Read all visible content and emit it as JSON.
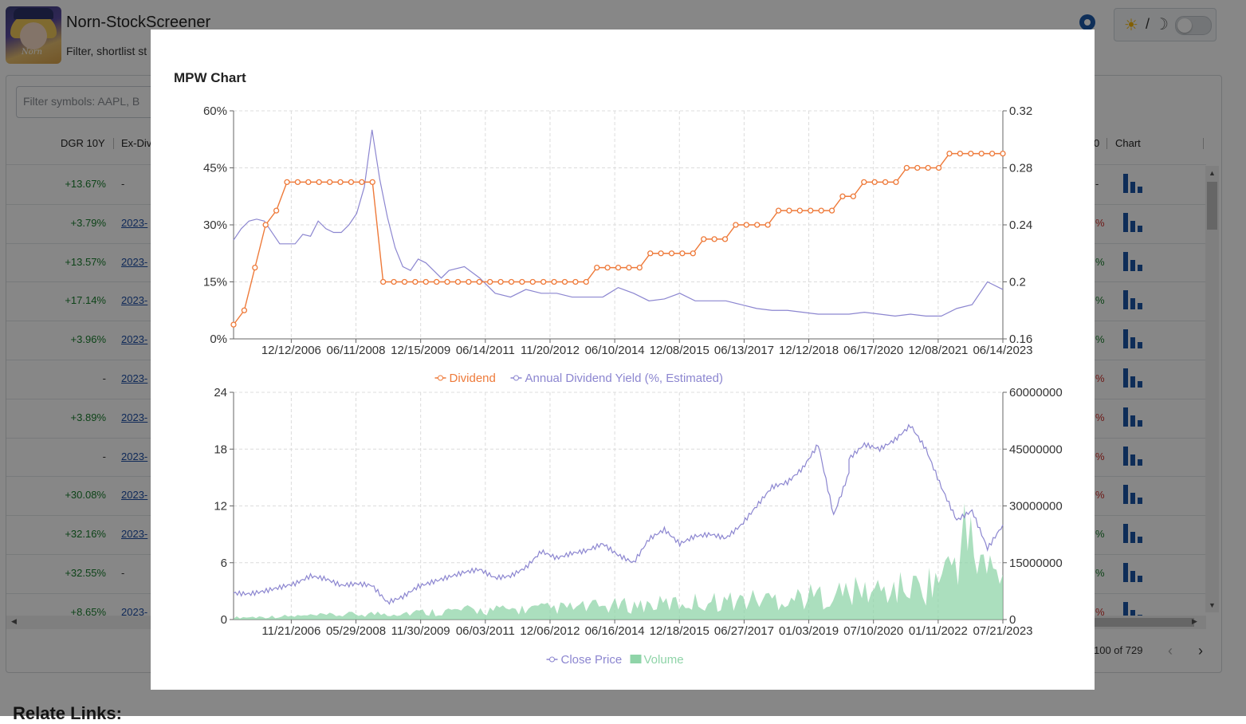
{
  "app": {
    "title": "Norn-StockScreener",
    "subtitle": "Filter, shortlist st",
    "avatar_text": "Norn"
  },
  "theme_toggle": {
    "sun_icon": "☀",
    "slash": "/",
    "moon_icon": "☽"
  },
  "filter": {
    "placeholder": "Filter symbols: AAPL, B"
  },
  "table": {
    "headers": [
      "DGR 10Y",
      "Ex-Div",
      "0",
      "Chart"
    ],
    "rows": [
      {
        "dgr": "+13.67%",
        "exdiv": "-",
        "right": "-",
        "right_class": "dash"
      },
      {
        "dgr": "+3.79%",
        "exdiv": "2023-",
        "right": "%",
        "right_class": "red"
      },
      {
        "dgr": "+13.57%",
        "exdiv": "2023-",
        "right": "%",
        "right_class": "green"
      },
      {
        "dgr": "+17.14%",
        "exdiv": "2023-",
        "right": "%",
        "right_class": "green"
      },
      {
        "dgr": "+3.96%",
        "exdiv": "2023-",
        "right": "%",
        "right_class": "green"
      },
      {
        "dgr": "-",
        "exdiv": "2023-",
        "right": "%",
        "right_class": "red"
      },
      {
        "dgr": "+3.89%",
        "exdiv": "2023-",
        "right": "%",
        "right_class": "red"
      },
      {
        "dgr": "-",
        "exdiv": "2023-",
        "right": "%",
        "right_class": "red"
      },
      {
        "dgr": "+30.08%",
        "exdiv": "2023-",
        "right": "%",
        "right_class": "red"
      },
      {
        "dgr": "+32.16%",
        "exdiv": "2023-",
        "right": "%",
        "right_class": "green"
      },
      {
        "dgr": "+32.55%",
        "exdiv": "-",
        "right": "%",
        "right_class": "green"
      },
      {
        "dgr": "+8.65%",
        "exdiv": "2023-",
        "right": "%",
        "right_class": "red"
      }
    ]
  },
  "pager": {
    "text": "100 of 729",
    "prev": "‹",
    "next": "›"
  },
  "related": {
    "label": "Relate Links:"
  },
  "modal": {
    "title": "MPW Chart",
    "colors": {
      "dividend": "#ee7a3a",
      "yield": "#8c86d0",
      "close": "#8c86d0",
      "volume": "#8fd4a8"
    }
  },
  "chart_data": [
    {
      "type": "line",
      "title": "",
      "x_ticks": [
        "12/12/2006",
        "06/11/2008",
        "12/15/2009",
        "06/14/2011",
        "11/20/2012",
        "06/10/2014",
        "12/08/2015",
        "06/13/2017",
        "12/12/2018",
        "06/17/2020",
        "12/08/2021",
        "06/14/2023"
      ],
      "y_left_ticks": [
        "0%",
        "15%",
        "30%",
        "45%",
        "60%"
      ],
      "y_right_ticks": [
        "0.16",
        "0.2",
        "0.24",
        "0.28",
        "0.32"
      ],
      "ylim_left": [
        0,
        60
      ],
      "ylim_right": [
        0.16,
        0.32
      ],
      "grid": true,
      "legend_position": "bottom-center",
      "series": [
        {
          "name": "Dividend",
          "axis": "right",
          "values": [
            0.17,
            0.18,
            0.21,
            0.24,
            0.25,
            0.27,
            0.27,
            0.27,
            0.27,
            0.27,
            0.27,
            0.27,
            0.27,
            0.27,
            0.2,
            0.2,
            0.2,
            0.2,
            0.2,
            0.2,
            0.2,
            0.2,
            0.2,
            0.2,
            0.2,
            0.2,
            0.2,
            0.2,
            0.2,
            0.2,
            0.2,
            0.2,
            0.2,
            0.2,
            0.21,
            0.21,
            0.21,
            0.21,
            0.21,
            0.22,
            0.22,
            0.22,
            0.22,
            0.22,
            0.23,
            0.23,
            0.23,
            0.24,
            0.24,
            0.24,
            0.24,
            0.25,
            0.25,
            0.25,
            0.25,
            0.25,
            0.25,
            0.26,
            0.26,
            0.27,
            0.27,
            0.27,
            0.27,
            0.28,
            0.28,
            0.28,
            0.28,
            0.29,
            0.29,
            0.29,
            0.29,
            0.29,
            0.29
          ]
        },
        {
          "name": "Annual Dividend Yield (%, Estimated)",
          "axis": "left",
          "x_frac": [
            0,
            0.01,
            0.02,
            0.03,
            0.04,
            0.05,
            0.06,
            0.07,
            0.08,
            0.09,
            0.1,
            0.11,
            0.12,
            0.13,
            0.14,
            0.15,
            0.16,
            0.17,
            0.18,
            0.19,
            0.2,
            0.21,
            0.22,
            0.23,
            0.24,
            0.25,
            0.26,
            0.27,
            0.28,
            0.3,
            0.32,
            0.34,
            0.36,
            0.38,
            0.4,
            0.42,
            0.44,
            0.46,
            0.48,
            0.5,
            0.52,
            0.54,
            0.56,
            0.58,
            0.6,
            0.62,
            0.64,
            0.66,
            0.68,
            0.7,
            0.72,
            0.74,
            0.76,
            0.78,
            0.8,
            0.82,
            0.84,
            0.86,
            0.88,
            0.9,
            0.92,
            0.94,
            0.96,
            0.98,
            1.0
          ],
          "values": [
            26,
            29,
            31,
            31.5,
            31,
            28,
            25,
            25,
            25,
            27.5,
            27,
            31,
            29,
            28,
            28,
            30,
            33,
            40,
            55,
            42,
            32,
            24,
            19,
            18,
            21,
            20,
            18,
            16,
            18,
            19,
            16,
            12,
            11,
            13,
            12,
            12,
            11,
            11,
            11,
            13.5,
            12,
            10,
            10.5,
            12,
            10,
            10,
            10,
            9,
            8,
            7.5,
            7.5,
            7,
            6.5,
            6.5,
            6.5,
            7,
            6.5,
            6,
            6.5,
            6,
            6,
            8,
            9,
            15,
            13
          ]
        }
      ]
    },
    {
      "type": "line",
      "title": "",
      "x_ticks": [
        "11/21/2006",
        "05/29/2008",
        "11/30/2009",
        "06/03/2011",
        "12/06/2012",
        "06/16/2014",
        "12/18/2015",
        "06/27/2017",
        "01/03/2019",
        "07/10/2020",
        "01/11/2022",
        "07/21/2023"
      ],
      "y_left_ticks": [
        "0",
        "6",
        "12",
        "18",
        "24"
      ],
      "y_right_ticks": [
        "0",
        "15000000",
        "30000000",
        "45000000",
        "60000000"
      ],
      "ylim_left": [
        0,
        24
      ],
      "ylim_right": [
        0,
        60000000
      ],
      "grid": true,
      "legend_position": "bottom-center",
      "series": [
        {
          "name": "Close Price",
          "axis": "left",
          "x_frac": [
            0,
            0.02,
            0.04,
            0.06,
            0.08,
            0.1,
            0.12,
            0.14,
            0.16,
            0.18,
            0.2,
            0.22,
            0.24,
            0.26,
            0.28,
            0.3,
            0.32,
            0.34,
            0.36,
            0.38,
            0.4,
            0.42,
            0.44,
            0.46,
            0.48,
            0.5,
            0.52,
            0.54,
            0.56,
            0.58,
            0.6,
            0.62,
            0.64,
            0.66,
            0.68,
            0.7,
            0.72,
            0.74,
            0.76,
            0.78,
            0.8,
            0.8,
            0.82,
            0.84,
            0.86,
            0.88,
            0.9,
            0.92,
            0.94,
            0.96,
            0.98,
            1.0
          ],
          "values": [
            2.8,
            2.7,
            3.0,
            3.4,
            3.8,
            4.6,
            4.3,
            3.6,
            3.8,
            3.6,
            1.8,
            2.4,
            3.5,
            4.0,
            4.5,
            5.0,
            5.3,
            4.4,
            4.6,
            5.5,
            7.2,
            6.5,
            7.0,
            7.3,
            8.0,
            6.8,
            6.0,
            8.5,
            9.5,
            8.0,
            8.8,
            9.0,
            8.6,
            10.0,
            12.0,
            14.0,
            14.5,
            16.0,
            18.5,
            11.0,
            15.5,
            17.0,
            18.5,
            18.0,
            19.0,
            20.5,
            18.0,
            14.0,
            10.5,
            11.5,
            7.5,
            10.0
          ]
        },
        {
          "name": "Volume",
          "axis": "right",
          "x_frac": [
            0,
            0.05,
            0.1,
            0.15,
            0.2,
            0.25,
            0.3,
            0.35,
            0.4,
            0.45,
            0.5,
            0.55,
            0.6,
            0.65,
            0.7,
            0.75,
            0.8,
            0.85,
            0.9,
            0.93,
            0.95,
            0.97,
            1.0
          ],
          "values": [
            500000,
            700000,
            900000,
            1200000,
            1500000,
            1800000,
            2200000,
            2300000,
            2600000,
            2900000,
            3300000,
            3600000,
            4200000,
            4500000,
            5000000,
            5500000,
            6500000,
            7000000,
            8000000,
            12000000,
            20000000,
            14000000,
            9000000
          ]
        }
      ]
    }
  ]
}
